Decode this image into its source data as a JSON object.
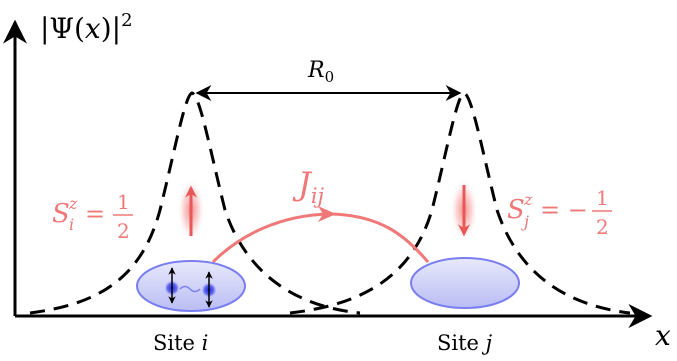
{
  "axes": {
    "y_label_main": "|Ψ(",
    "y_label_var": "x",
    "y_label_close": ")|",
    "y_label_exp": "2",
    "x_label": "x"
  },
  "distance": {
    "symbol": "R",
    "subscript": "0"
  },
  "coupling": {
    "symbol": "J",
    "subscript": "ij"
  },
  "spin_i": {
    "symbol": "S",
    "sub": "i",
    "sup": "z",
    "equals": "=",
    "num": "1",
    "den": "2"
  },
  "spin_j": {
    "symbol": "S",
    "sub": "j",
    "sup": "z",
    "equals": "= −",
    "num": "1",
    "den": "2"
  },
  "site_i": {
    "word": "Site",
    "index": "i"
  },
  "site_j": {
    "word": "Site",
    "index": "j"
  },
  "colors": {
    "ink": "#000000",
    "pink": "#f07878",
    "site_fill": "#c9ccf5",
    "site_stroke": "#7a7ef0",
    "particle": "#1a22e0"
  }
}
